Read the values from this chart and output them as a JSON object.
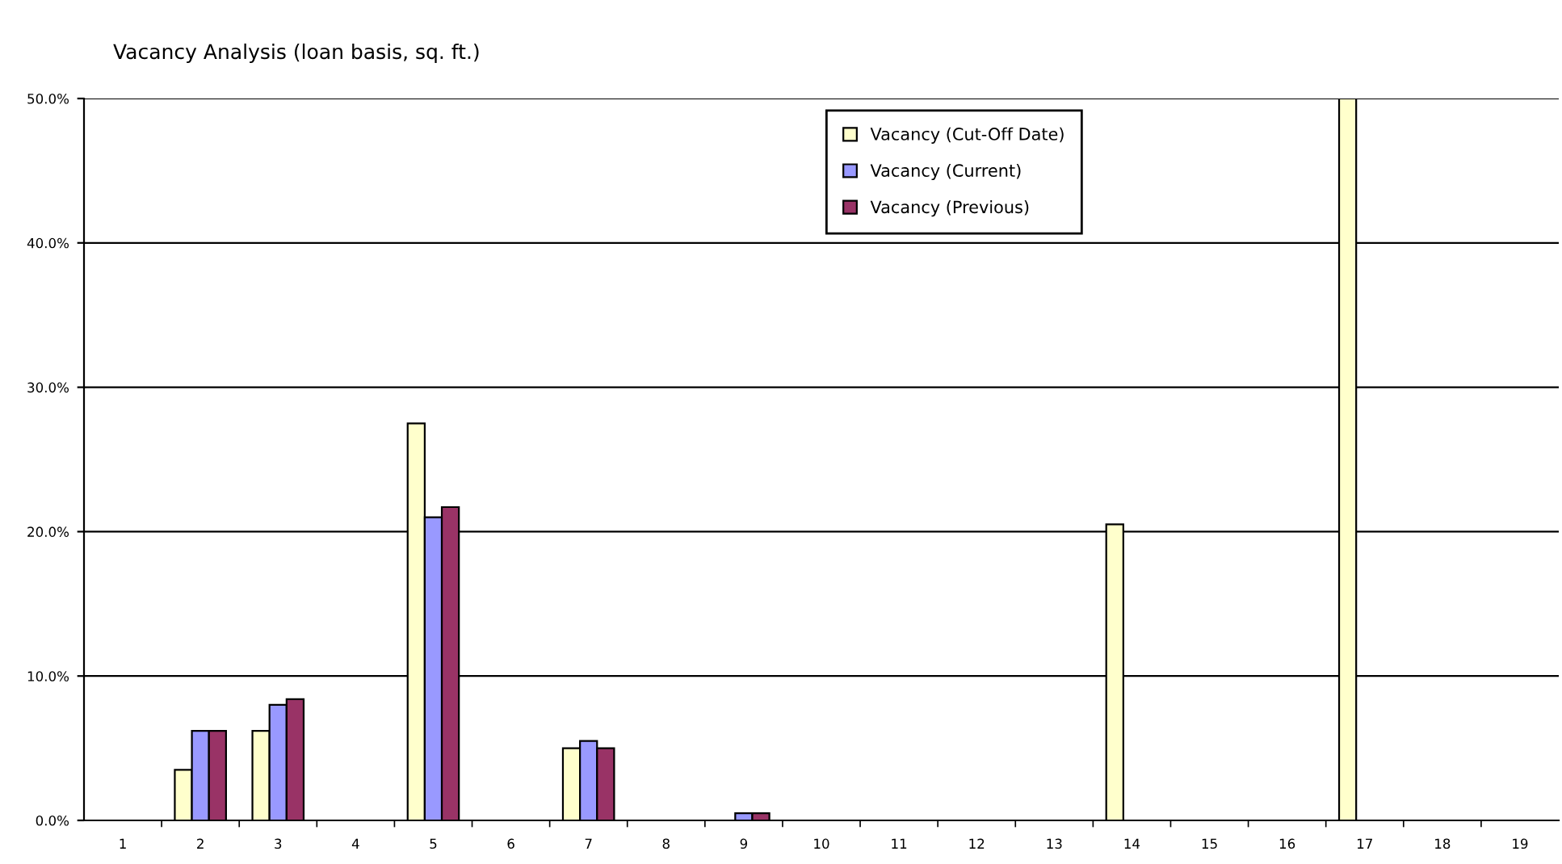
{
  "chart_data": {
    "type": "bar",
    "title": "Vacancy Analysis (loan basis, sq. ft.)",
    "categories": [
      "1",
      "2",
      "3",
      "4",
      "5",
      "6",
      "7",
      "8",
      "9",
      "10",
      "11",
      "12",
      "13",
      "14",
      "15",
      "16",
      "17",
      "18",
      "19"
    ],
    "series": [
      {
        "name": "Vacancy (Cut-Off Date)",
        "color": "#ffffcc",
        "values": [
          null,
          3.5,
          6.2,
          null,
          27.5,
          null,
          5.0,
          null,
          null,
          null,
          null,
          null,
          null,
          20.5,
          null,
          null,
          50,
          null,
          null
        ]
      },
      {
        "name": "Vacancy (Current)",
        "color": "#9999ff",
        "values": [
          null,
          6.2,
          8.0,
          null,
          21.0,
          null,
          5.5,
          null,
          0.5,
          null,
          null,
          null,
          null,
          null,
          null,
          null,
          null,
          null,
          null
        ]
      },
      {
        "name": "Vacancy (Previous)",
        "color": "#993366",
        "values": [
          null,
          6.2,
          8.4,
          null,
          21.7,
          null,
          5.0,
          null,
          0.5,
          null,
          null,
          null,
          null,
          null,
          null,
          null,
          null,
          null,
          null
        ]
      }
    ],
    "ylim": [
      0,
      50
    ],
    "yticks": [
      {
        "value": 0,
        "label": "0.0%"
      },
      {
        "value": 10,
        "label": "10.0%"
      },
      {
        "value": 20,
        "label": "20.0%"
      },
      {
        "value": 30,
        "label": "30.0%"
      },
      {
        "value": 40,
        "label": "40.0%"
      },
      {
        "value": 50,
        "label": "50.0%"
      }
    ],
    "grid": "y",
    "legend": "top"
  }
}
